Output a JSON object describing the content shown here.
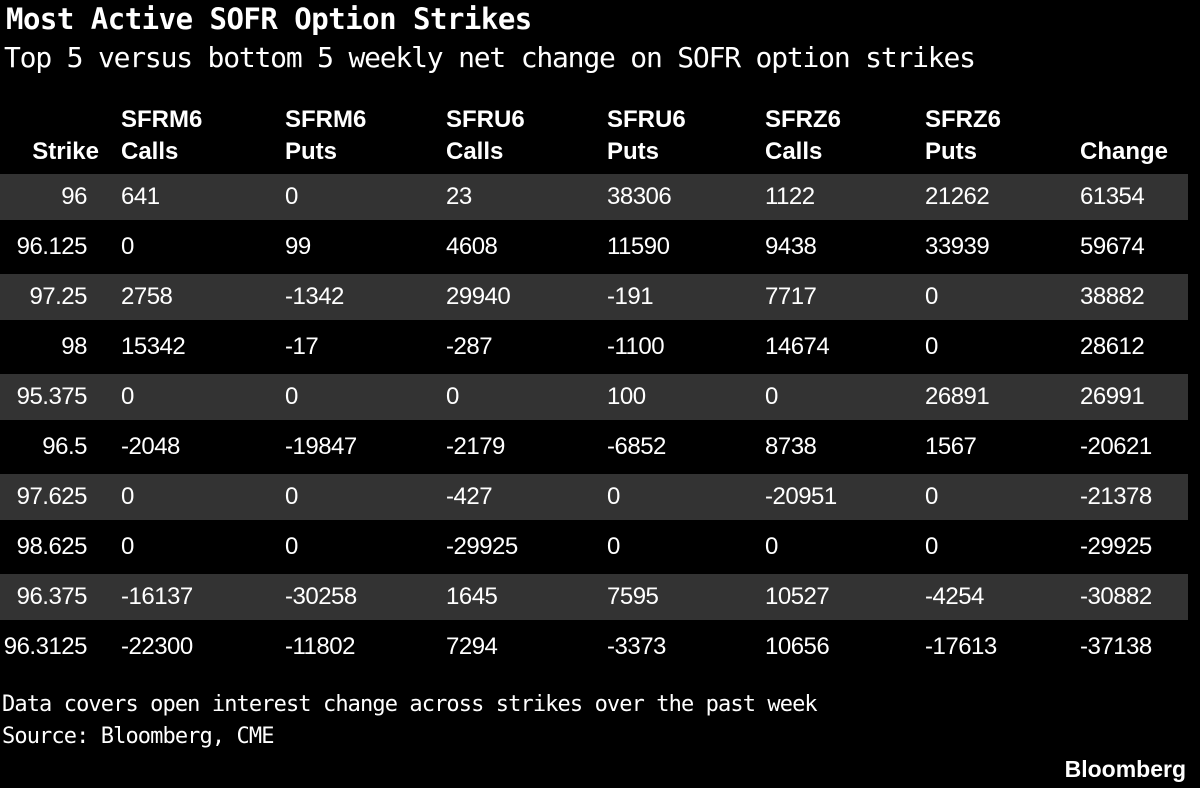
{
  "chart_data": {
    "type": "table",
    "title": "Most Active SOFR Option Strikes",
    "subtitle": "Top 5 versus bottom 5 weekly net change on SOFR option strikes",
    "columns": [
      {
        "key": "strike",
        "line1": "",
        "line2": "Strike"
      },
      {
        "key": "sfrm6_calls",
        "line1": "SFRM6",
        "line2": "Calls"
      },
      {
        "key": "sfrm6_puts",
        "line1": "SFRM6",
        "line2": "Puts"
      },
      {
        "key": "sfru6_calls",
        "line1": "SFRU6",
        "line2": "Calls"
      },
      {
        "key": "sfru6_puts",
        "line1": "SFRU6",
        "line2": "Puts"
      },
      {
        "key": "sfrz6_calls",
        "line1": "SFRZ6",
        "line2": "Calls"
      },
      {
        "key": "sfrz6_puts",
        "line1": "SFRZ6",
        "line2": "Puts"
      },
      {
        "key": "change",
        "line1": "",
        "line2": "Change"
      }
    ],
    "rows": [
      [
        "96",
        "641",
        "0",
        "23",
        "38306",
        "1122",
        "21262",
        "61354"
      ],
      [
        "96.125",
        "0",
        "99",
        "4608",
        "11590",
        "9438",
        "33939",
        "59674"
      ],
      [
        "97.25",
        "2758",
        "-1342",
        "29940",
        "-191",
        "7717",
        "0",
        "38882"
      ],
      [
        "98",
        "15342",
        "-17",
        "-287",
        "-1100",
        "14674",
        "0",
        "28612"
      ],
      [
        "95.375",
        "0",
        "0",
        "0",
        "100",
        "0",
        "26891",
        "26991"
      ],
      [
        "96.5",
        "-2048",
        "-19847",
        "-2179",
        "-6852",
        "8738",
        "1567",
        "-20621"
      ],
      [
        "97.625",
        "0",
        "0",
        "-427",
        "0",
        "-20951",
        "0",
        "-21378"
      ],
      [
        "98.625",
        "0",
        "0",
        "-29925",
        "0",
        "0",
        "0",
        "-29925"
      ],
      [
        "96.375",
        "-16137",
        "-30258",
        "1645",
        "7595",
        "10527",
        "-4254",
        "-30882"
      ],
      [
        "96.3125",
        "-22300",
        "-11802",
        "7294",
        "-3373",
        "10656",
        "-17613",
        "-37138"
      ]
    ]
  },
  "footnotes": [
    "Data covers open interest change across strikes over the past week",
    "Source: Bloomberg, CME"
  ],
  "brand": "Bloomberg",
  "colors": {
    "background": "#000000",
    "row_shade": "#333333",
    "text": "#ffffff"
  }
}
